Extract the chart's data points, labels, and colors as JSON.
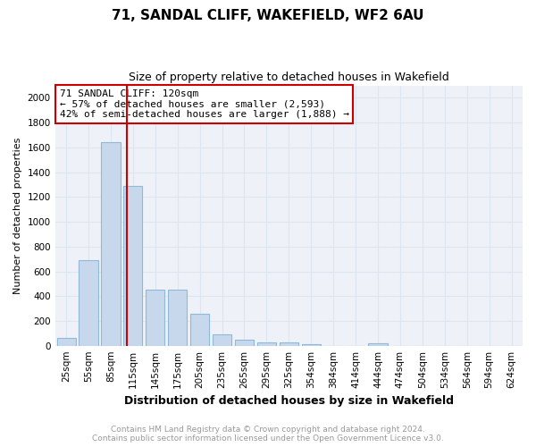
{
  "title": "71, SANDAL CLIFF, WAKEFIELD, WF2 6AU",
  "subtitle": "Size of property relative to detached houses in Wakefield",
  "xlabel": "Distribution of detached houses by size in Wakefield",
  "ylabel": "Number of detached properties",
  "footnote": "Contains HM Land Registry data © Crown copyright and database right 2024.\nContains public sector information licensed under the Open Government Licence v3.0.",
  "categories": [
    "25sqm",
    "55sqm",
    "85sqm",
    "115sqm",
    "145sqm",
    "175sqm",
    "205sqm",
    "235sqm",
    "265sqm",
    "295sqm",
    "325sqm",
    "354sqm",
    "384sqm",
    "414sqm",
    "444sqm",
    "474sqm",
    "504sqm",
    "534sqm",
    "564sqm",
    "594sqm",
    "624sqm"
  ],
  "values": [
    65,
    690,
    1640,
    1290,
    450,
    450,
    255,
    90,
    50,
    30,
    25,
    15,
    0,
    0,
    20,
    0,
    0,
    0,
    0,
    0,
    0
  ],
  "bar_color": "#c8d8ec",
  "bar_edge_color": "#90b8d8",
  "red_line_label": "71 SANDAL CLIFF: 120sqm",
  "annotation_line1": "← 57% of detached houses are smaller (2,593)",
  "annotation_line2": "42% of semi-detached houses are larger (1,888) →",
  "ylim": [
    0,
    2100
  ],
  "yticks": [
    0,
    200,
    400,
    600,
    800,
    1000,
    1200,
    1400,
    1600,
    1800,
    2000
  ],
  "annotation_box_color": "#ffffff",
  "annotation_box_edge": "#cc0000",
  "grid_color": "#dce6f0",
  "background_color": "#eef2f8",
  "title_fontsize": 11,
  "subtitle_fontsize": 9,
  "ylabel_fontsize": 8,
  "xlabel_fontsize": 9,
  "tick_fontsize": 7.5,
  "footnote_color": "#999999",
  "footnote_fontsize": 6.5
}
